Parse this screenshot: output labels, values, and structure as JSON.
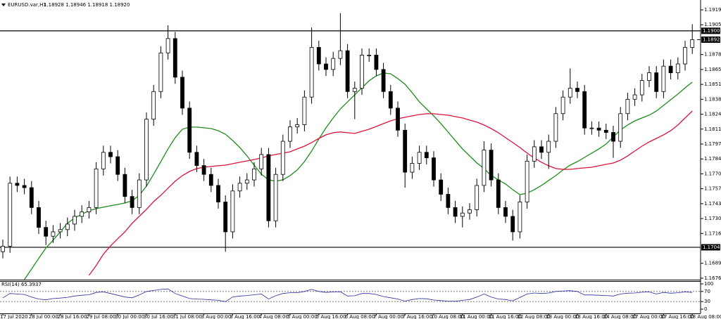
{
  "chart_data": [
    {
      "type": "candlestick",
      "title": "EURUSD.var,H1",
      "subtitle": "1.18928 1.18946 1.18918 1.18920",
      "categories": [
        "17 Jul 2020",
        null,
        null,
        null,
        "28 Jul 00:00",
        null,
        null,
        null,
        "28 Jul 16:00",
        null,
        null,
        null,
        "29 Jul 08:00",
        null,
        null,
        null,
        "30 Jul 00:00",
        null,
        null,
        null,
        "30 Jul 16:00",
        null,
        null,
        null,
        "31 Jul 08:00",
        null,
        null,
        null,
        "3 Aug 00:00",
        null,
        null,
        null,
        "3 Aug 16:00",
        null,
        null,
        null,
        "4 Aug 08:00",
        null,
        null,
        null,
        "5 Aug 00:00",
        null,
        null,
        null,
        "5 Aug 16:00",
        null,
        null,
        null,
        "6 Aug 08:00",
        null,
        null,
        null,
        "7 Aug 00:00",
        null,
        null,
        null,
        "7 Aug 16:00",
        null,
        null,
        null,
        "10 Aug 08:00",
        null,
        null,
        null,
        "11 Aug 00:00",
        null,
        null,
        null,
        "11 Aug 16:00",
        null,
        null,
        null,
        "12 Aug 08:00",
        null,
        null,
        null,
        "13 Aug 00:00",
        null,
        null,
        null,
        "13 Aug 16:00",
        null,
        null,
        null,
        "14 Aug 08:00",
        null,
        null,
        null,
        "17 Aug 00:00",
        null,
        null,
        null,
        "17 Aug 16:00",
        null,
        null,
        null,
        "18 Aug 08:00"
      ],
      "open": [
        1.17,
        1.1705,
        1.1762,
        1.176,
        1.1758,
        1.174,
        1.1722,
        1.1714,
        1.1718,
        1.172,
        1.1725,
        1.1732,
        1.1736,
        1.174,
        1.1775,
        1.179,
        1.1786,
        1.177,
        1.175,
        1.174,
        1.1765,
        1.182,
        1.1845,
        1.188,
        1.1893,
        1.1858,
        1.183,
        1.179,
        1.1778,
        1.177,
        1.176,
        1.1745,
        1.1718,
        1.1755,
        1.1762,
        1.1765,
        1.1775,
        1.1788,
        1.1728,
        1.177,
        1.18,
        1.1813,
        1.1815,
        1.184,
        1.1885,
        1.187,
        1.1865,
        1.1875,
        1.1882,
        1.1845,
        1.1848,
        1.1878,
        1.1878,
        1.1865,
        1.1845,
        1.183,
        1.181,
        1.1772,
        1.178,
        1.179,
        1.1785,
        1.1765,
        1.1752,
        1.174,
        1.1732,
        1.1735,
        1.1738,
        1.176,
        1.1792,
        1.1765,
        1.174,
        1.1732,
        1.1718,
        1.1745,
        1.1782,
        1.1795,
        1.179,
        1.18,
        1.1825,
        1.184,
        1.1848,
        1.1845,
        1.1812,
        1.1812,
        1.181,
        1.1808,
        1.18,
        1.1825,
        1.1838,
        1.1842,
        1.1855,
        1.1862,
        1.1845,
        1.1868,
        1.1862,
        1.187,
        1.1885
      ],
      "high": [
        1.1711,
        1.1768,
        1.1768,
        1.1766,
        1.1764,
        1.1746,
        1.1728,
        1.1724,
        1.1726,
        1.1731,
        1.1738,
        1.1742,
        1.1746,
        1.1781,
        1.1796,
        1.1796,
        1.1792,
        1.1776,
        1.1756,
        1.1771,
        1.1826,
        1.1851,
        1.1886,
        1.1905,
        1.1899,
        1.1864,
        1.1836,
        1.1796,
        1.1784,
        1.1776,
        1.1766,
        1.1751,
        1.1761,
        1.1768,
        1.1771,
        1.1781,
        1.1794,
        1.1794,
        1.1776,
        1.1806,
        1.1819,
        1.1821,
        1.1846,
        1.1903,
        1.1891,
        1.1876,
        1.1881,
        1.1916,
        1.1888,
        1.1854,
        1.1884,
        1.1884,
        1.1884,
        1.1871,
        1.1851,
        1.1836,
        1.1816,
        1.1786,
        1.1796,
        1.1796,
        1.1791,
        1.1771,
        1.1758,
        1.1746,
        1.1741,
        1.1744,
        1.1766,
        1.18,
        1.1798,
        1.1771,
        1.1746,
        1.1738,
        1.1751,
        1.1788,
        1.1801,
        1.1801,
        1.1806,
        1.1831,
        1.1846,
        1.1866,
        1.1854,
        1.1851,
        1.1818,
        1.1818,
        1.1816,
        1.1814,
        1.1831,
        1.1844,
        1.1848,
        1.1861,
        1.1868,
        1.1868,
        1.1874,
        1.1874,
        1.1876,
        1.1891,
        1.1906
      ],
      "low": [
        1.1694,
        1.1699,
        1.1754,
        1.1752,
        1.1734,
        1.1716,
        1.1706,
        1.1708,
        1.1712,
        1.1714,
        1.1719,
        1.1726,
        1.173,
        1.1734,
        1.1769,
        1.178,
        1.1764,
        1.1744,
        1.1734,
        1.1734,
        1.1759,
        1.1814,
        1.1839,
        1.1874,
        1.1852,
        1.1824,
        1.1784,
        1.1772,
        1.1764,
        1.1754,
        1.1739,
        1.17,
        1.1712,
        1.1749,
        1.1756,
        1.1759,
        1.1769,
        1.1722,
        1.1722,
        1.1764,
        1.1794,
        1.1807,
        1.1809,
        1.1834,
        1.1864,
        1.1859,
        1.1859,
        1.1869,
        1.1839,
        1.182,
        1.1842,
        1.1872,
        1.1859,
        1.1839,
        1.1824,
        1.1804,
        1.1758,
        1.1766,
        1.1774,
        1.1779,
        1.1759,
        1.1746,
        1.1734,
        1.1726,
        1.1722,
        1.1729,
        1.1732,
        1.1754,
        1.1759,
        1.1734,
        1.1726,
        1.171,
        1.1712,
        1.1739,
        1.1776,
        1.1784,
        1.1775,
        1.1794,
        1.1819,
        1.1834,
        1.1839,
        1.1806,
        1.1806,
        1.1804,
        1.1802,
        1.1785,
        1.1794,
        1.1819,
        1.1832,
        1.1836,
        1.1849,
        1.1839,
        1.1839,
        1.1856,
        1.1856,
        1.1864,
        1.1879
      ],
      "close": [
        1.1705,
        1.1762,
        1.176,
        1.1758,
        1.174,
        1.1722,
        1.1714,
        1.1718,
        1.172,
        1.1725,
        1.1732,
        1.1736,
        1.174,
        1.1775,
        1.179,
        1.1786,
        1.177,
        1.175,
        1.174,
        1.1765,
        1.182,
        1.1845,
        1.188,
        1.1893,
        1.1858,
        1.183,
        1.179,
        1.1778,
        1.177,
        1.176,
        1.1745,
        1.1718,
        1.1755,
        1.1762,
        1.1765,
        1.1775,
        1.1788,
        1.1728,
        1.177,
        1.18,
        1.1813,
        1.1815,
        1.184,
        1.1885,
        1.187,
        1.1865,
        1.1875,
        1.1882,
        1.1845,
        1.1848,
        1.1878,
        1.1878,
        1.1865,
        1.1845,
        1.183,
        1.181,
        1.1772,
        1.178,
        1.179,
        1.1785,
        1.1765,
        1.1752,
        1.174,
        1.1732,
        1.1735,
        1.1738,
        1.176,
        1.1792,
        1.1765,
        1.174,
        1.1732,
        1.1718,
        1.1745,
        1.1782,
        1.1795,
        1.179,
        1.18,
        1.1825,
        1.184,
        1.1848,
        1.1845,
        1.1812,
        1.1812,
        1.181,
        1.1808,
        1.18,
        1.1825,
        1.1838,
        1.1842,
        1.1855,
        1.1862,
        1.1845,
        1.1868,
        1.1862,
        1.187,
        1.1885,
        1.1892
      ],
      "up_color": "#ffffff",
      "down_color": "#000000",
      "series": [
        {
          "color": "#1e8c1e",
          "values": [
            null,
            null,
            null,
            1.16748,
            1.16843,
            1.16939,
            1.17034,
            1.17104,
            1.1718,
            1.17257,
            1.17307,
            1.17339,
            1.17371,
            1.1739,
            1.17403,
            1.17416,
            1.17428,
            1.17441,
            1.1746,
            1.17511,
            1.17594,
            1.17702,
            1.17816,
            1.17931,
            1.18033,
            1.18109,
            1.18128,
            1.18128,
            1.18122,
            1.18115,
            1.18096,
            1.18064,
            1.18007,
            1.17943,
            1.17867,
            1.17784,
            1.17702,
            1.17651,
            1.17638,
            1.17651,
            1.17689,
            1.1774,
            1.17816,
            1.17912,
            1.1802,
            1.18122,
            1.18211,
            1.18293,
            1.18357,
            1.1842,
            1.18484,
            1.18548,
            1.18592,
            1.18618,
            1.18611,
            1.18567,
            1.18516,
            1.1844,
            1.18357,
            1.18293,
            1.1823,
            1.1816,
            1.18083,
            1.18007,
            1.17931,
            1.17867,
            1.17804,
            1.17753,
            1.17689,
            1.17651,
            1.17613,
            1.17562,
            1.17517,
            1.1753,
            1.17562,
            1.176,
            1.17645,
            1.17689,
            1.1774,
            1.17784,
            1.17816,
            1.17854,
            1.17893,
            1.17931,
            1.17975,
            1.18039,
            1.18103,
            1.18147,
            1.18185,
            1.18211,
            1.18236,
            1.18274,
            1.18325,
            1.18376,
            1.18427,
            1.18484,
            1.18535
          ]
        },
        {
          "color": "#dc143c",
          "values": [
            null,
            null,
            null,
            null,
            null,
            null,
            null,
            null,
            null,
            null,
            null,
            null,
            1.16786,
            1.16875,
            1.16977,
            1.17053,
            1.17117,
            1.1718,
            1.17257,
            1.1732,
            1.17384,
            1.17454,
            1.17511,
            1.17575,
            1.17638,
            1.17689,
            1.17727,
            1.17753,
            1.17765,
            1.17772,
            1.17778,
            1.17784,
            1.17797,
            1.1781,
            1.17822,
            1.17835,
            1.17848,
            1.17867,
            1.1788,
            1.17893,
            1.17905,
            1.17931,
            1.17956,
            1.17988,
            1.18026,
            1.18058,
            1.18077,
            1.18084,
            1.18077,
            1.18071,
            1.1809,
            1.18109,
            1.18134,
            1.1816,
            1.18185,
            1.18204,
            1.18217,
            1.1823,
            1.18242,
            1.18249,
            1.18249,
            1.18242,
            1.18236,
            1.18223,
            1.18211,
            1.18192,
            1.18173,
            1.18147,
            1.18115,
            1.18077,
            1.18033,
            1.17988,
            1.17943,
            1.17893,
            1.17848,
            1.1781,
            1.17778,
            1.17753,
            1.17746,
            1.17746,
            1.17753,
            1.17759,
            1.17765,
            1.17778,
            1.17791,
            1.17803,
            1.17829,
            1.17867,
            1.17912,
            1.17956,
            1.17994,
            1.18026,
            1.18058,
            1.18096,
            1.18147,
            1.18211,
            1.18274
          ]
        }
      ],
      "levels": [
        {
          "value": 1.19,
          "label": "1.19000"
        },
        {
          "value": 1.1704,
          "label": "1.17040"
        }
      ],
      "last_price": {
        "value": 1.1892,
        "label": "1.18920"
      },
      "ylim": [
        1.16747,
        1.19279
      ],
      "yticks": [
        {
          "value": 1.1919,
          "label": "1.19190"
        },
        {
          "value": 1.19055,
          "label": "1.19055"
        },
        {
          "value": 1.18785,
          "label": "1.18785"
        },
        {
          "value": 1.1865,
          "label": "1.18650"
        },
        {
          "value": 1.18515,
          "label": "1.18515"
        },
        {
          "value": 1.1838,
          "label": "1.18380"
        },
        {
          "value": 1.18245,
          "label": "1.18245"
        },
        {
          "value": 1.1811,
          "label": "1.18110"
        },
        {
          "value": 1.17975,
          "label": "1.17975"
        },
        {
          "value": 1.1784,
          "label": "1.17840"
        },
        {
          "value": 1.17705,
          "label": "1.17705"
        },
        {
          "value": 1.1757,
          "label": "1.17570"
        },
        {
          "value": 1.17435,
          "label": "1.17435"
        },
        {
          "value": 1.173,
          "label": "1.17300"
        },
        {
          "value": 1.17165,
          "label": "1.17165"
        },
        {
          "value": 1.16895,
          "label": "1.16895"
        },
        {
          "value": 1.1676,
          "label": "1.16760"
        }
      ]
    },
    {
      "type": "line",
      "title": "RSI(14) 65.3937",
      "color": "#2a2aa0",
      "values": [
        45,
        62,
        60,
        58,
        48,
        40,
        37,
        42,
        44,
        47,
        52,
        55,
        57,
        66,
        68,
        62,
        55,
        48,
        45,
        56,
        70,
        74,
        78,
        80,
        62,
        52,
        42,
        40,
        39,
        37,
        35,
        30,
        48,
        52,
        54,
        57,
        60,
        40,
        53,
        62,
        65,
        65,
        70,
        78,
        70,
        66,
        68,
        69,
        52,
        53,
        62,
        62,
        58,
        50,
        45,
        40,
        32,
        38,
        42,
        41,
        36,
        34,
        32,
        31,
        35,
        38,
        48,
        60,
        48,
        40,
        38,
        33,
        46,
        60,
        64,
        62,
        64,
        70,
        72,
        73,
        70,
        56,
        56,
        55,
        54,
        52,
        60,
        63,
        64,
        67,
        68,
        60,
        66,
        63,
        65,
        68,
        66
      ],
      "ylim": [
        0,
        100
      ],
      "yticks": [
        100,
        70,
        30,
        0
      ],
      "levels": [
        70,
        30
      ]
    }
  ]
}
